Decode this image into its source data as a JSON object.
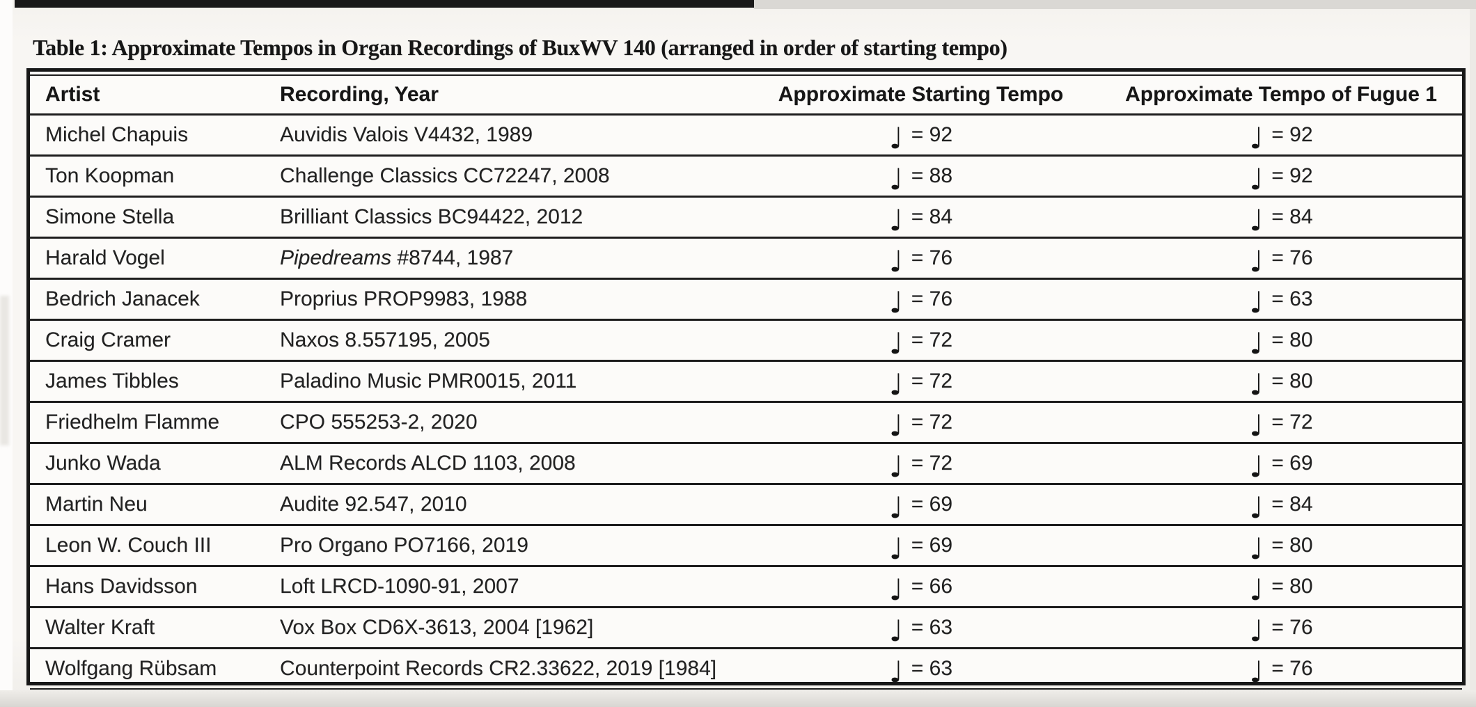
{
  "page": {
    "caption": "Table 1: Approximate Tempos in Organ Recordings of BuxWV 140 (arranged in order of starting tempo)"
  },
  "colors": {
    "ink": "#1c1c1c",
    "line": "#1d1d1d",
    "page_background": "#f7f5f2"
  },
  "table": {
    "note_glyph": "♩",
    "columns": [
      "Artist",
      "Recording, Year",
      "Approximate Starting Tempo",
      "Approximate Tempo of Fugue 1"
    ],
    "rows": [
      {
        "artist": "Michel Chapuis",
        "recording_italic": "",
        "recording": "Auvidis Valois V4432, 1989",
        "starting_tempo": "= 92",
        "fugue_tempo": "= 92"
      },
      {
        "artist": "Ton Koopman",
        "recording_italic": "",
        "recording": "Challenge Classics CC72247, 2008",
        "starting_tempo": "= 88",
        "fugue_tempo": "= 92"
      },
      {
        "artist": "Simone Stella",
        "recording_italic": "",
        "recording": "Brilliant Classics BC94422, 2012",
        "starting_tempo": "= 84",
        "fugue_tempo": "= 84"
      },
      {
        "artist": "Harald Vogel",
        "recording_italic": "Pipedreams",
        "recording": " #8744, 1987",
        "starting_tempo": "= 76",
        "fugue_tempo": "= 76"
      },
      {
        "artist": "Bedrich Janacek",
        "recording_italic": "",
        "recording": "Proprius PROP9983, 1988",
        "starting_tempo": "= 76",
        "fugue_tempo": "= 63"
      },
      {
        "artist": "Craig Cramer",
        "recording_italic": "",
        "recording": "Naxos 8.557195, 2005",
        "starting_tempo": "= 72",
        "fugue_tempo": "= 80"
      },
      {
        "artist": "James Tibbles",
        "recording_italic": "",
        "recording": "Paladino Music PMR0015, 2011",
        "starting_tempo": "= 72",
        "fugue_tempo": "= 80"
      },
      {
        "artist": "Friedhelm Flamme",
        "recording_italic": "",
        "recording": "CPO 555253-2, 2020",
        "starting_tempo": "= 72",
        "fugue_tempo": "= 72"
      },
      {
        "artist": "Junko Wada",
        "recording_italic": "",
        "recording": "ALM Records ALCD 1103, 2008",
        "starting_tempo": "= 72",
        "fugue_tempo": "= 69"
      },
      {
        "artist": "Martin Neu",
        "recording_italic": "",
        "recording": "Audite 92.547, 2010",
        "starting_tempo": "= 69",
        "fugue_tempo": "= 84"
      },
      {
        "artist": "Leon W. Couch III",
        "recording_italic": "",
        "recording": "Pro Organo PO7166, 2019",
        "starting_tempo": "= 69",
        "fugue_tempo": "= 80"
      },
      {
        "artist": "Hans Davidsson",
        "recording_italic": "",
        "recording": "Loft LRCD-1090-91, 2007",
        "starting_tempo": "= 66",
        "fugue_tempo": "= 80"
      },
      {
        "artist": "Walter Kraft",
        "recording_italic": "",
        "recording": "Vox Box CD6X-3613, 2004 [1962]",
        "starting_tempo": "= 63",
        "fugue_tempo": "= 76"
      },
      {
        "artist": "Wolfgang Rübsam",
        "recording_italic": "",
        "recording": "Counterpoint Records CR2.33622, 2019 [1984]",
        "starting_tempo": "= 63",
        "fugue_tempo": "= 76"
      }
    ]
  }
}
